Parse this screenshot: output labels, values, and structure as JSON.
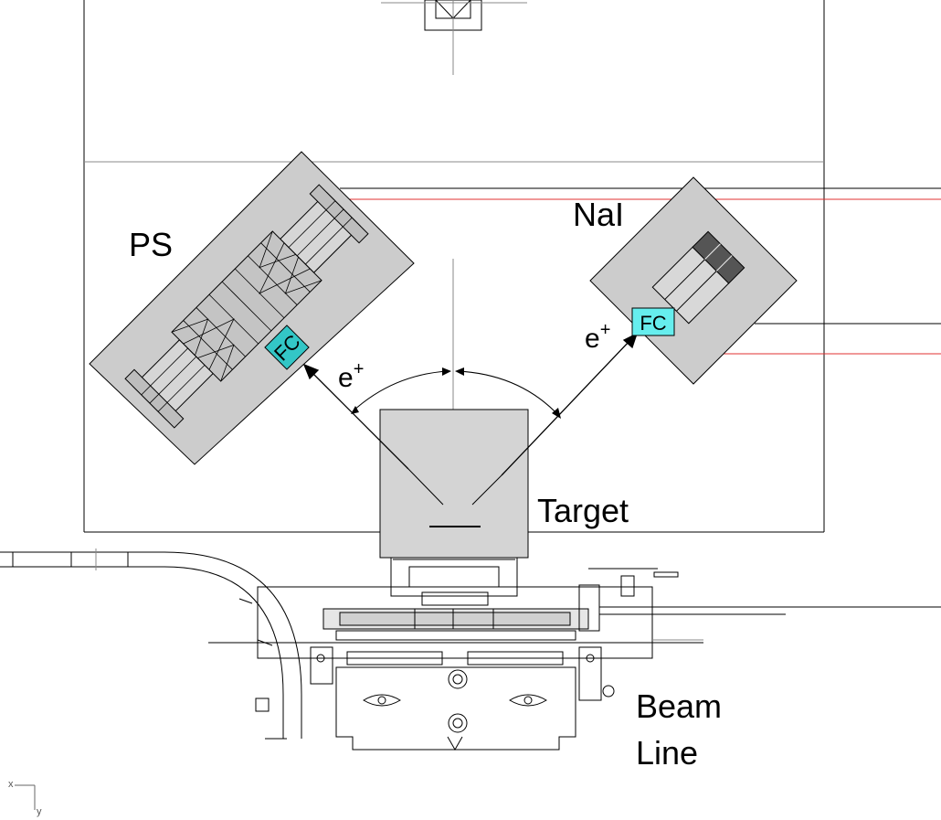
{
  "labels": {
    "ps": "PS",
    "nai": "NaI",
    "target": "Target",
    "beam_line_1": "Beam",
    "beam_line_2": "Line",
    "fc_left": "FC",
    "fc_right": "FC",
    "positron_left": "e",
    "positron_right": "e",
    "positron_sup": "+"
  },
  "axis_indicator": {
    "x": "x",
    "y": "y"
  },
  "colors": {
    "detector_gray": "#cccccc",
    "fc_cyan": "#33c6c6",
    "fc_cyan_light": "#66eeee",
    "red_line": "#e03030"
  }
}
